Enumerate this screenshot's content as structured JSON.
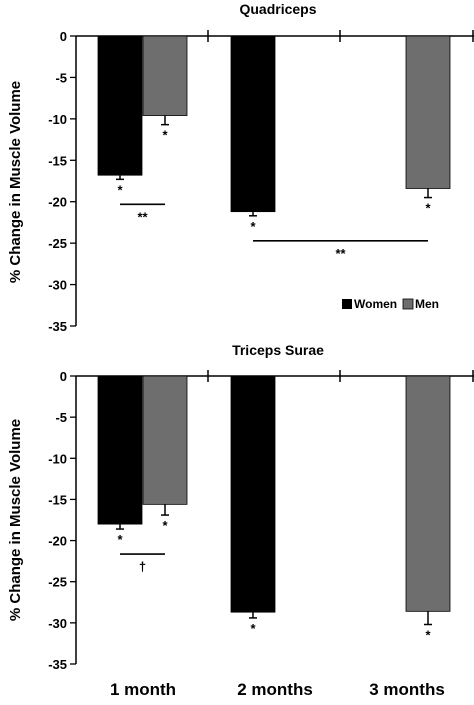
{
  "chart_data": [
    {
      "type": "bar",
      "title": "Quadriceps",
      "ylabel": "% Change in Muscle Volume",
      "categories": [
        "1 month",
        "2 months",
        "3 months"
      ],
      "ylim": [
        -35,
        0
      ],
      "yticks": [
        0,
        -5,
        -10,
        -15,
        -20,
        -25,
        -30,
        -35
      ],
      "legend": "bottom-right",
      "colors": {
        "Women": "#000000",
        "Men": "#6e6e6e"
      },
      "series": [
        {
          "name": "Women",
          "values": [
            -16.8,
            -21.2,
            null
          ],
          "errors": [
            0.5,
            0.5,
            null
          ]
        },
        {
          "name": "Men",
          "values": [
            -9.6,
            null,
            -18.4
          ],
          "errors": [
            1.1,
            null,
            1.1
          ]
        }
      ],
      "significance": [
        "*",
        "*",
        "*",
        "*"
      ],
      "comparisons": [
        {
          "label": "**",
          "between": [
            "1 month Women",
            "1 month Men"
          ]
        },
        {
          "label": "**",
          "between": [
            "2 months Women",
            "3 months Men"
          ]
        }
      ]
    },
    {
      "type": "bar",
      "title": "Triceps Surae",
      "ylabel": "% Change in Muscle Volume",
      "categories": [
        "1 month",
        "2 months",
        "3 months"
      ],
      "ylim": [
        -35,
        0
      ],
      "yticks": [
        0,
        -5,
        -10,
        -15,
        -20,
        -25,
        -30,
        -35
      ],
      "colors": {
        "Women": "#000000",
        "Men": "#6e6e6e"
      },
      "series": [
        {
          "name": "Women",
          "values": [
            -18.0,
            -28.7,
            null
          ],
          "errors": [
            0.6,
            0.7,
            null
          ]
        },
        {
          "name": "Men",
          "values": [
            -15.6,
            null,
            -28.6
          ],
          "errors": [
            1.3,
            null,
            1.6
          ]
        }
      ],
      "significance": [
        "*",
        "*",
        "*",
        "*"
      ],
      "comparisons": [
        {
          "label": "†",
          "between": [
            "1 month Women",
            "1 month Men"
          ]
        }
      ]
    }
  ]
}
